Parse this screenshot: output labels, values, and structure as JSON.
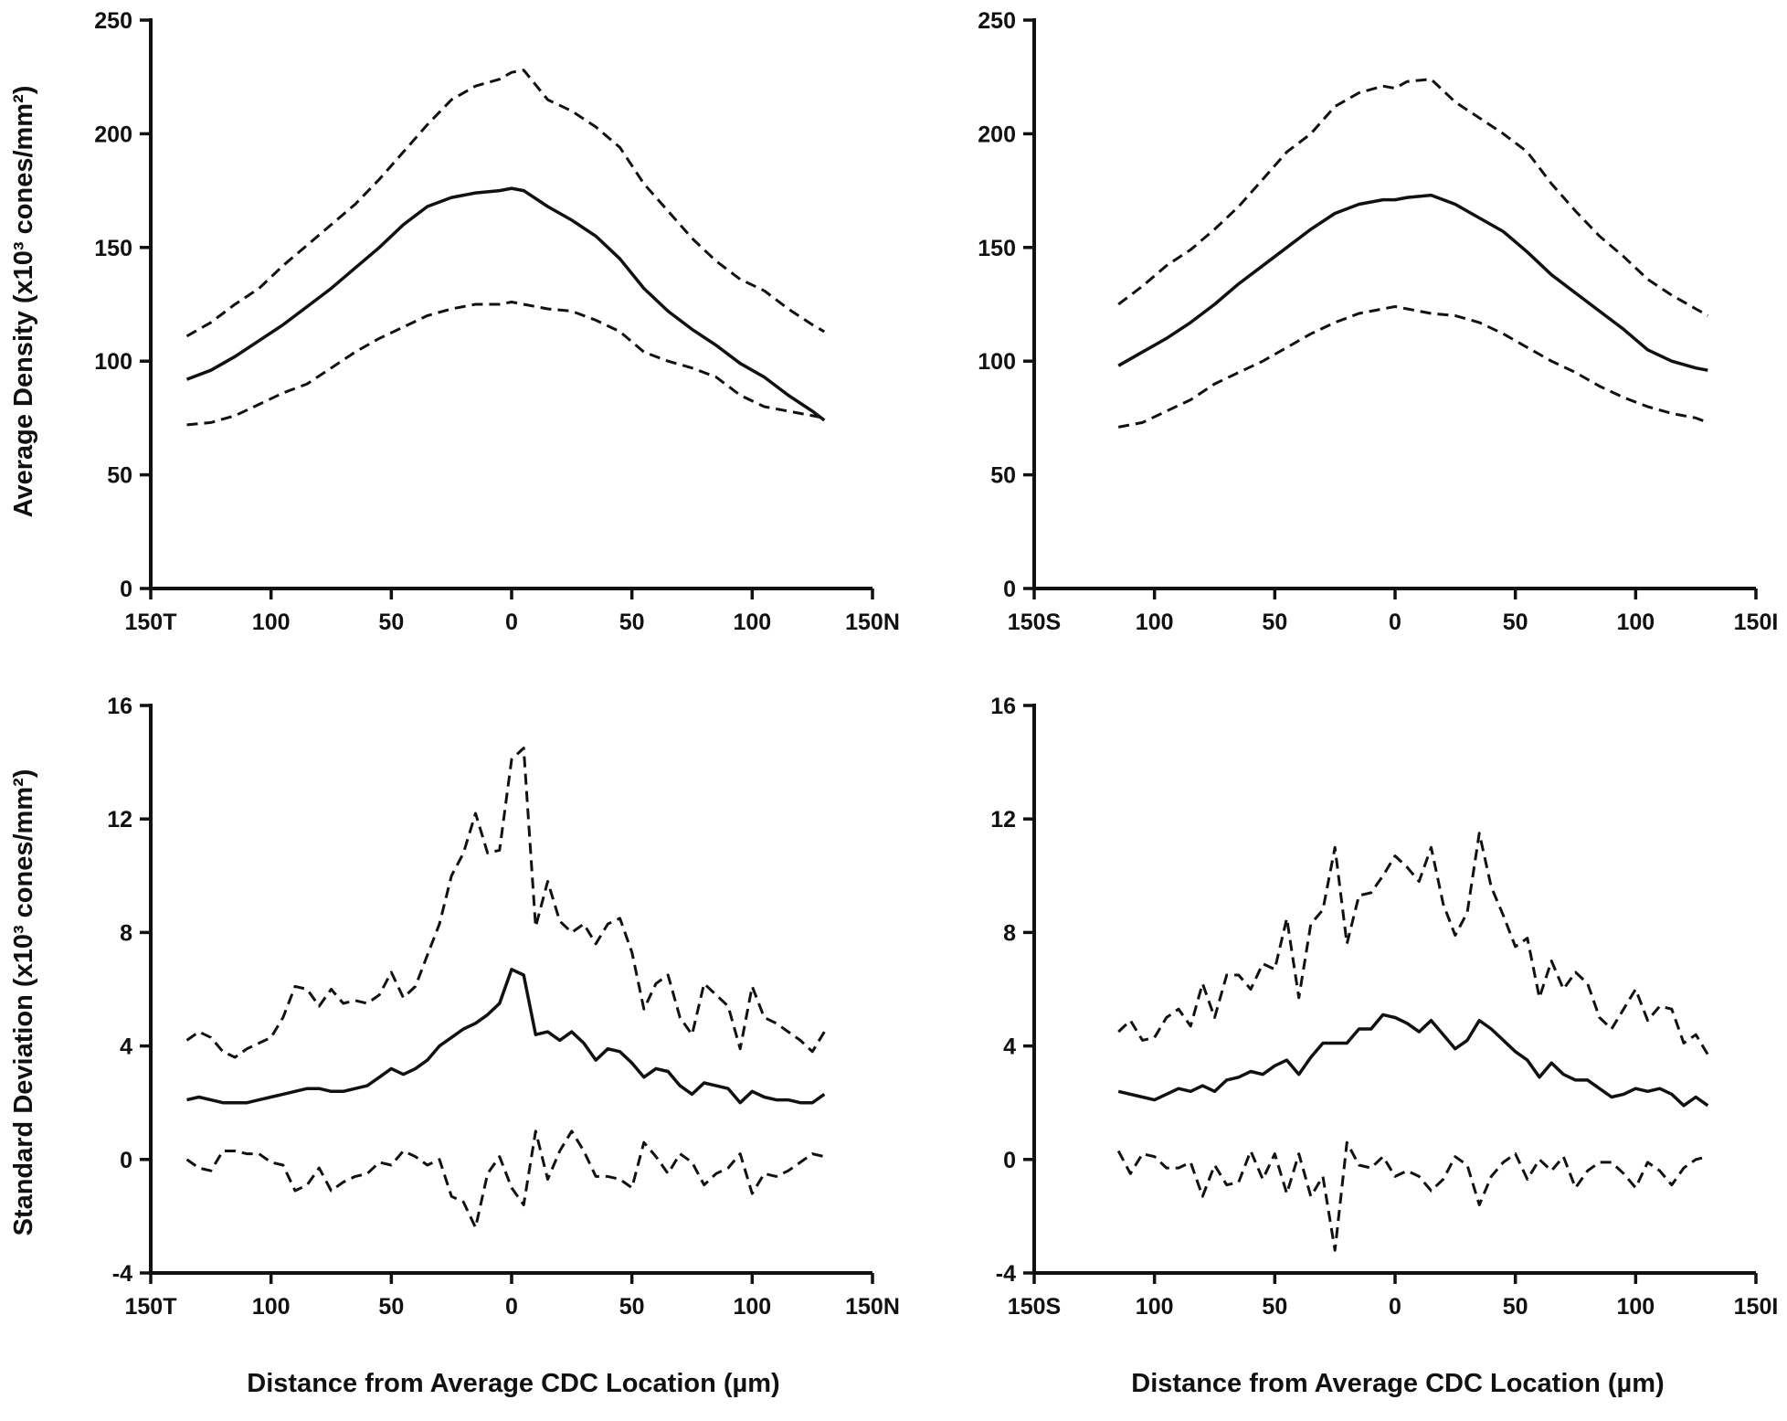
{
  "chart_data": [
    {
      "type": "line",
      "ylabel": "Average Density (x10³ cones/mm²)",
      "xlabel": "",
      "ylim": [
        0,
        250
      ],
      "yticks": [
        "0",
        "50",
        "100",
        "150",
        "200",
        "250"
      ],
      "xlim": [
        -150,
        150
      ],
      "xticks": [
        -150,
        -100,
        -50,
        0,
        50,
        100,
        150
      ],
      "xtick_labels": [
        "150T",
        "100",
        "50",
        "0",
        "50",
        "100",
        "150N"
      ],
      "series": [
        {
          "style": "dashed",
          "x": [
            -135,
            -125,
            -115,
            -105,
            -95,
            -85,
            -75,
            -65,
            -55,
            -45,
            -35,
            -25,
            -15,
            -5,
            0,
            5,
            15,
            25,
            35,
            45,
            55,
            65,
            75,
            85,
            95,
            105,
            115,
            125,
            130
          ],
          "y": [
            111,
            117,
            125,
            132,
            142,
            151,
            160,
            169,
            180,
            192,
            204,
            215,
            221,
            224,
            227,
            228,
            215,
            210,
            203,
            194,
            178,
            166,
            154,
            144,
            136,
            131,
            123,
            116,
            113
          ]
        },
        {
          "style": "solid",
          "x": [
            -135,
            -125,
            -115,
            -105,
            -95,
            -85,
            -75,
            -65,
            -55,
            -45,
            -35,
            -25,
            -15,
            -5,
            0,
            5,
            15,
            25,
            35,
            45,
            55,
            65,
            75,
            85,
            95,
            105,
            115,
            125,
            130
          ],
          "y": [
            92,
            96,
            102,
            109,
            116,
            124,
            132,
            141,
            150,
            160,
            168,
            172,
            174,
            175,
            176,
            175,
            168,
            162,
            155,
            145,
            132,
            122,
            114,
            107,
            99,
            93,
            85,
            78,
            74
          ]
        },
        {
          "style": "dashed",
          "x": [
            -135,
            -125,
            -115,
            -105,
            -95,
            -85,
            -75,
            -65,
            -55,
            -45,
            -35,
            -25,
            -15,
            -5,
            0,
            5,
            15,
            25,
            35,
            45,
            55,
            65,
            75,
            85,
            95,
            105,
            115,
            125,
            130
          ],
          "y": [
            72,
            73,
            76,
            81,
            86,
            90,
            97,
            104,
            110,
            115,
            120,
            123,
            125,
            125,
            126,
            125,
            123,
            122,
            118,
            113,
            104,
            100,
            97,
            93,
            85,
            80,
            78,
            76,
            75
          ]
        }
      ]
    },
    {
      "type": "line",
      "ylabel": "",
      "xlabel": "",
      "ylim": [
        0,
        250
      ],
      "yticks": [
        "0",
        "50",
        "100",
        "150",
        "200",
        "250"
      ],
      "xlim": [
        -150,
        150
      ],
      "xticks": [
        -150,
        -100,
        -50,
        0,
        50,
        100,
        150
      ],
      "xtick_labels": [
        "150S",
        "100",
        "50",
        "0",
        "50",
        "100",
        "150I"
      ],
      "series": [
        {
          "style": "dashed",
          "x": [
            -115,
            -105,
            -95,
            -85,
            -75,
            -65,
            -55,
            -45,
            -35,
            -25,
            -15,
            -5,
            0,
            5,
            15,
            25,
            35,
            45,
            55,
            65,
            75,
            85,
            95,
            105,
            115,
            125,
            130
          ],
          "y": [
            125,
            133,
            142,
            149,
            158,
            168,
            180,
            192,
            200,
            212,
            218,
            221,
            220,
            223,
            224,
            214,
            207,
            200,
            192,
            178,
            166,
            155,
            146,
            136,
            129,
            123,
            120
          ]
        },
        {
          "style": "solid",
          "x": [
            -115,
            -105,
            -95,
            -85,
            -75,
            -65,
            -55,
            -45,
            -35,
            -25,
            -15,
            -5,
            0,
            5,
            15,
            25,
            35,
            45,
            55,
            65,
            75,
            85,
            95,
            105,
            115,
            125,
            130
          ],
          "y": [
            98,
            104,
            110,
            117,
            125,
            134,
            142,
            150,
            158,
            165,
            169,
            171,
            171,
            172,
            173,
            169,
            163,
            157,
            148,
            138,
            130,
            122,
            114,
            105,
            100,
            97,
            96
          ]
        },
        {
          "style": "dashed",
          "x": [
            -115,
            -105,
            -95,
            -85,
            -75,
            -65,
            -55,
            -45,
            -35,
            -25,
            -15,
            -5,
            0,
            5,
            15,
            25,
            35,
            45,
            55,
            65,
            75,
            85,
            95,
            105,
            115,
            125,
            130
          ],
          "y": [
            71,
            73,
            78,
            83,
            90,
            95,
            100,
            106,
            112,
            117,
            121,
            123,
            124,
            123,
            121,
            120,
            117,
            112,
            106,
            100,
            95,
            89,
            84,
            80,
            77,
            75,
            73
          ]
        }
      ]
    },
    {
      "type": "line",
      "ylabel": "Standard Deviation (x10³ cones/mm²)",
      "xlabel": "Distance from Average CDC Location (µm)",
      "ylim": [
        -4,
        16
      ],
      "yticks": [
        "-4",
        "0",
        "4",
        "8",
        "12",
        "16"
      ],
      "xlim": [
        -150,
        150
      ],
      "xticks": [
        -150,
        -100,
        -50,
        0,
        50,
        100,
        150
      ],
      "xtick_labels": [
        "150T",
        "100",
        "50",
        "0",
        "50",
        "100",
        "150N"
      ],
      "series": [
        {
          "style": "dashed",
          "x": [
            -135,
            -130,
            -125,
            -120,
            -115,
            -110,
            -105,
            -100,
            -95,
            -90,
            -85,
            -80,
            -75,
            -70,
            -65,
            -60,
            -55,
            -50,
            -45,
            -40,
            -35,
            -30,
            -25,
            -20,
            -15,
            -10,
            -5,
            0,
            5,
            10,
            15,
            20,
            25,
            30,
            35,
            40,
            45,
            50,
            55,
            60,
            65,
            70,
            75,
            80,
            85,
            90,
            95,
            100,
            105,
            110,
            115,
            120,
            125,
            130
          ],
          "y": [
            4.2,
            4.5,
            4.3,
            3.8,
            3.6,
            3.9,
            4.1,
            4.3,
            5.0,
            6.1,
            6.0,
            5.4,
            6.0,
            5.5,
            5.6,
            5.5,
            5.8,
            6.6,
            5.7,
            6.1,
            7.2,
            8.3,
            10.0,
            10.8,
            12.2,
            10.8,
            10.9,
            14.1,
            14.5,
            8.2,
            9.8,
            8.4,
            8.0,
            8.3,
            7.6,
            8.3,
            8.5,
            7.3,
            5.3,
            6.2,
            6.5,
            5.0,
            4.4,
            6.2,
            5.8,
            5.4,
            3.9,
            6.1,
            5.0,
            4.8,
            4.5,
            4.2,
            3.8,
            4.5
          ]
        },
        {
          "style": "solid",
          "x": [
            -135,
            -130,
            -125,
            -120,
            -115,
            -110,
            -105,
            -100,
            -95,
            -90,
            -85,
            -80,
            -75,
            -70,
            -65,
            -60,
            -55,
            -50,
            -45,
            -40,
            -35,
            -30,
            -25,
            -20,
            -15,
            -10,
            -5,
            0,
            5,
            10,
            15,
            20,
            25,
            30,
            35,
            40,
            45,
            50,
            55,
            60,
            65,
            70,
            75,
            80,
            85,
            90,
            95,
            100,
            105,
            110,
            115,
            120,
            125,
            130
          ],
          "y": [
            2.1,
            2.2,
            2.1,
            2.0,
            2.0,
            2.0,
            2.1,
            2.2,
            2.3,
            2.4,
            2.5,
            2.5,
            2.4,
            2.4,
            2.5,
            2.6,
            2.9,
            3.2,
            3.0,
            3.2,
            3.5,
            4.0,
            4.3,
            4.6,
            4.8,
            5.1,
            5.5,
            6.7,
            6.5,
            4.4,
            4.5,
            4.2,
            4.5,
            4.1,
            3.5,
            3.9,
            3.8,
            3.4,
            2.9,
            3.2,
            3.1,
            2.6,
            2.3,
            2.7,
            2.6,
            2.5,
            2.0,
            2.4,
            2.2,
            2.1,
            2.1,
            2.0,
            2.0,
            2.3
          ]
        },
        {
          "style": "dashed",
          "x": [
            -135,
            -130,
            -125,
            -120,
            -115,
            -110,
            -105,
            -100,
            -95,
            -90,
            -85,
            -80,
            -75,
            -70,
            -65,
            -60,
            -55,
            -50,
            -45,
            -40,
            -35,
            -30,
            -25,
            -20,
            -15,
            -10,
            -5,
            0,
            5,
            10,
            15,
            20,
            25,
            30,
            35,
            40,
            45,
            50,
            55,
            60,
            65,
            70,
            75,
            80,
            85,
            90,
            95,
            100,
            105,
            110,
            115,
            120,
            125,
            130
          ],
          "y": [
            0.0,
            -0.3,
            -0.4,
            0.3,
            0.3,
            0.2,
            0.2,
            -0.1,
            -0.2,
            -1.1,
            -0.9,
            -0.3,
            -1.1,
            -0.8,
            -0.6,
            -0.5,
            -0.1,
            -0.2,
            0.3,
            0.1,
            -0.2,
            0.0,
            -1.3,
            -1.5,
            -2.4,
            -0.5,
            0.1,
            -1.0,
            -1.6,
            1.0,
            -0.7,
            0.3,
            1.0,
            0.3,
            -0.6,
            -0.6,
            -0.7,
            -1.0,
            0.6,
            0.1,
            -0.5,
            0.2,
            -0.1,
            -0.9,
            -0.5,
            -0.3,
            0.2,
            -1.2,
            -0.5,
            -0.6,
            -0.4,
            -0.1,
            0.2,
            0.1
          ]
        }
      ]
    },
    {
      "type": "line",
      "ylabel": "",
      "xlabel": "Distance from Average CDC Location (µm)",
      "ylim": [
        -4,
        16
      ],
      "yticks": [
        "-4",
        "0",
        "4",
        "8",
        "12",
        "16"
      ],
      "xlim": [
        -150,
        150
      ],
      "xticks": [
        -150,
        -100,
        -50,
        0,
        50,
        100,
        150
      ],
      "xtick_labels": [
        "150S",
        "100",
        "50",
        "0",
        "50",
        "100",
        "150I"
      ],
      "series": [
        {
          "style": "dashed",
          "x": [
            -115,
            -110,
            -105,
            -100,
            -95,
            -90,
            -85,
            -80,
            -75,
            -70,
            -65,
            -60,
            -55,
            -50,
            -45,
            -40,
            -35,
            -30,
            -25,
            -20,
            -15,
            -10,
            -5,
            0,
            5,
            10,
            15,
            20,
            25,
            30,
            35,
            40,
            45,
            50,
            55,
            60,
            65,
            70,
            75,
            80,
            85,
            90,
            95,
            100,
            105,
            110,
            115,
            120,
            125,
            130
          ],
          "y": [
            4.5,
            4.9,
            4.2,
            4.3,
            5.0,
            5.3,
            4.7,
            6.2,
            5.0,
            6.5,
            6.5,
            6.0,
            6.9,
            6.7,
            8.5,
            5.7,
            8.3,
            8.8,
            11.0,
            7.6,
            9.3,
            9.4,
            10.0,
            10.7,
            10.3,
            9.8,
            11.0,
            9.0,
            7.9,
            8.7,
            11.5,
            9.6,
            8.6,
            7.5,
            7.8,
            5.7,
            7.0,
            6.0,
            6.6,
            6.2,
            5.0,
            4.6,
            5.3,
            6.0,
            4.9,
            5.4,
            5.3,
            4.1,
            4.4,
            3.7
          ]
        },
        {
          "style": "solid",
          "x": [
            -115,
            -110,
            -105,
            -100,
            -95,
            -90,
            -85,
            -80,
            -75,
            -70,
            -65,
            -60,
            -55,
            -50,
            -45,
            -40,
            -35,
            -30,
            -25,
            -20,
            -15,
            -10,
            -5,
            0,
            5,
            10,
            15,
            20,
            25,
            30,
            35,
            40,
            45,
            50,
            55,
            60,
            65,
            70,
            75,
            80,
            85,
            90,
            95,
            100,
            105,
            110,
            115,
            120,
            125,
            130
          ],
          "y": [
            2.4,
            2.3,
            2.2,
            2.1,
            2.3,
            2.5,
            2.4,
            2.6,
            2.4,
            2.8,
            2.9,
            3.1,
            3.0,
            3.3,
            3.5,
            3.0,
            3.6,
            4.1,
            4.1,
            4.1,
            4.6,
            4.6,
            5.1,
            5.0,
            4.8,
            4.5,
            4.9,
            4.4,
            3.9,
            4.2,
            4.9,
            4.6,
            4.2,
            3.8,
            3.5,
            2.9,
            3.4,
            3.0,
            2.8,
            2.8,
            2.5,
            2.2,
            2.3,
            2.5,
            2.4,
            2.5,
            2.3,
            1.9,
            2.2,
            1.9
          ]
        },
        {
          "style": "dashed",
          "x": [
            -115,
            -110,
            -105,
            -100,
            -95,
            -90,
            -85,
            -80,
            -75,
            -70,
            -65,
            -60,
            -55,
            -50,
            -45,
            -40,
            -35,
            -30,
            -25,
            -20,
            -15,
            -10,
            -5,
            0,
            5,
            10,
            15,
            20,
            25,
            30,
            35,
            40,
            45,
            50,
            55,
            60,
            65,
            70,
            75,
            80,
            85,
            90,
            95,
            100,
            105,
            110,
            115,
            120,
            125,
            130
          ],
          "y": [
            0.3,
            -0.5,
            0.2,
            0.1,
            -0.3,
            -0.3,
            -0.1,
            -1.3,
            -0.2,
            -0.9,
            -0.8,
            0.3,
            -0.7,
            0.2,
            -1.2,
            0.2,
            -1.3,
            -0.6,
            -3.2,
            0.6,
            -0.2,
            -0.3,
            0.1,
            -0.6,
            -0.4,
            -0.6,
            -1.1,
            -0.7,
            0.1,
            -0.2,
            -1.6,
            -0.6,
            -0.1,
            0.2,
            -0.7,
            0.0,
            -0.4,
            0.1,
            -1.0,
            -0.4,
            -0.1,
            -0.1,
            -0.5,
            -1.0,
            -0.1,
            -0.4,
            -0.9,
            -0.3,
            0.0,
            0.1
          ]
        }
      ]
    }
  ]
}
